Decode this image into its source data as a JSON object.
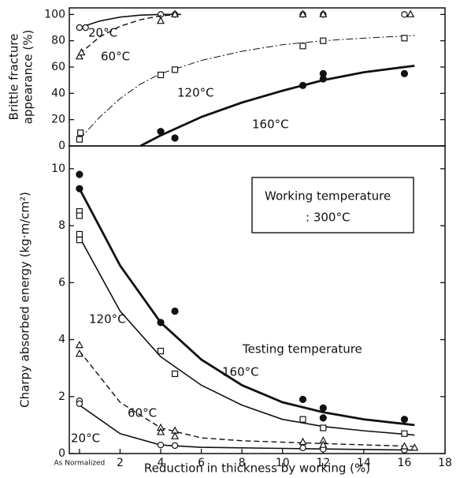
{
  "chart_data": [
    {
      "type": "scatter",
      "ylabel": [
        "Brittle fracture",
        "appearance (%)"
      ],
      "xlim": [
        -0.5,
        18
      ],
      "ylim": [
        0,
        105
      ],
      "yticks": [
        0,
        20,
        40,
        60,
        80,
        100
      ],
      "series": [
        {
          "name": "20°C",
          "marker": "circle",
          "line": "solid",
          "x": [
            0,
            0.3,
            4,
            4.7,
            11,
            12,
            16
          ],
          "values": [
            90,
            90,
            100,
            100,
            100,
            100,
            100
          ],
          "fit_x": [
            0,
            1,
            2,
            3,
            4,
            5
          ],
          "fit": [
            90,
            95,
            98,
            99.5,
            100,
            100
          ]
        },
        {
          "name": "60°C",
          "marker": "triangle",
          "line": "dashed",
          "x": [
            0,
            0.1,
            4,
            4.7,
            11,
            12,
            16.3
          ],
          "values": [
            68,
            71,
            95,
            100,
            100,
            100,
            100
          ],
          "fit_x": [
            0,
            1,
            2,
            3,
            4,
            5
          ],
          "fit": [
            70,
            83,
            91,
            96,
            99,
            100
          ]
        },
        {
          "name": "120°C",
          "marker": "square",
          "line": "dashdot",
          "x": [
            0,
            0.05,
            4,
            4.7,
            11,
            12,
            16
          ],
          "values": [
            5,
            10,
            54,
            58,
            76,
            80,
            82
          ],
          "fit_x": [
            0,
            1,
            2,
            3,
            4,
            6,
            8,
            10,
            12,
            14,
            16.5
          ],
          "fit": [
            5,
            22,
            36,
            47,
            55,
            65,
            72,
            77,
            80,
            82,
            84
          ]
        },
        {
          "name": "160°C",
          "marker": "filled",
          "line": "thick",
          "x": [
            4,
            4.7,
            11,
            12,
            12,
            16
          ],
          "values": [
            11,
            6,
            46,
            55,
            51,
            55
          ],
          "fit_x": [
            3,
            4,
            5,
            6,
            8,
            10,
            12,
            14,
            16.5
          ],
          "fit": [
            0,
            8,
            15,
            22,
            33,
            42,
            50,
            56,
            61
          ]
        }
      ]
    },
    {
      "type": "scatter",
      "ylabel": [
        "Charpy absorbed energy (kg·m/cm²)"
      ],
      "xlabel": "Reduction in thickness by working (%)",
      "xlim": [
        -0.5,
        18
      ],
      "xticks": [
        {
          "value": 0,
          "label": "As Normalized"
        },
        2,
        4,
        6,
        8,
        10,
        12,
        14,
        16,
        18
      ],
      "ylim": [
        0,
        10.8
      ],
      "yticks": [
        0,
        2,
        4,
        6,
        8,
        10
      ],
      "box": [
        "Working temperature",
        ": 300°C"
      ],
      "annotation": "Testing temperature",
      "series": [
        {
          "name": "20°C",
          "marker": "circle",
          "line": "solid",
          "x": [
            0,
            0,
            4,
            4.7,
            11,
            12,
            16
          ],
          "values": [
            1.85,
            1.75,
            0.3,
            0.28,
            0.2,
            0.15,
            0.12
          ],
          "fit_x": [
            0,
            2,
            4,
            6,
            10,
            16.5
          ],
          "fit": [
            1.7,
            0.7,
            0.3,
            0.22,
            0.18,
            0.12
          ]
        },
        {
          "name": "60°C",
          "marker": "triangle",
          "line": "dashed",
          "x": [
            0,
            0,
            4,
            4,
            4.7,
            4.7,
            11,
            12,
            12,
            16,
            16.5
          ],
          "values": [
            3.8,
            3.5,
            0.9,
            0.75,
            0.8,
            0.6,
            0.4,
            0.45,
            0.3,
            0.25,
            0.2
          ],
          "fit_x": [
            0,
            2,
            4,
            6,
            8,
            12,
            16.5
          ],
          "fit": [
            3.6,
            1.8,
            0.9,
            0.55,
            0.45,
            0.35,
            0.25
          ]
        },
        {
          "name": "120°C",
          "marker": "square",
          "line": "solid",
          "x": [
            0,
            0,
            0,
            0,
            4,
            4.7,
            11,
            12,
            16
          ],
          "values": [
            8.5,
            8.35,
            7.7,
            7.5,
            3.6,
            2.8,
            1.2,
            0.9,
            0.7
          ],
          "fit_x": [
            0,
            2,
            4,
            6,
            8,
            10,
            12,
            14,
            16.5
          ],
          "fit": [
            7.6,
            5.0,
            3.4,
            2.4,
            1.7,
            1.2,
            0.95,
            0.8,
            0.65
          ]
        },
        {
          "name": "160°C",
          "marker": "filled",
          "line": "thick",
          "x": [
            0,
            0,
            4,
            4.7,
            11,
            12,
            12,
            16
          ],
          "values": [
            9.8,
            9.3,
            4.6,
            5.0,
            1.9,
            1.6,
            1.25,
            1.2
          ],
          "fit_x": [
            0,
            2,
            4,
            6,
            8,
            10,
            12,
            14,
            16.5
          ],
          "fit": [
            9.3,
            6.6,
            4.6,
            3.3,
            2.4,
            1.8,
            1.45,
            1.2,
            1.0
          ]
        }
      ]
    }
  ]
}
